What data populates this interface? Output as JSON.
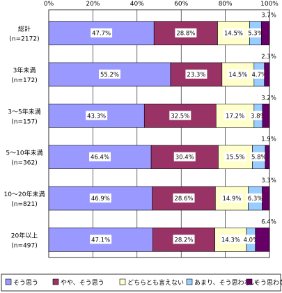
{
  "chart_data": {
    "type": "bar",
    "orientation": "horizontal",
    "stacked": true,
    "xlim": [
      0,
      100
    ],
    "x_ticks": [
      "0%",
      "20%",
      "40%",
      "60%",
      "80%",
      "100%"
    ],
    "grid": true,
    "legend_position": "bottom",
    "categories": [
      {
        "label": "総計",
        "n": "(n=2172)"
      },
      {
        "label": "3年未満",
        "n": "(n=172)"
      },
      {
        "label": "3～5年未満",
        "n": "(n=157)"
      },
      {
        "label": "5～10年未満",
        "n": "(n=362)"
      },
      {
        "label": "10～20年未満",
        "n": "(n=821)"
      },
      {
        "label": "20年以上",
        "n": "(n=497)"
      }
    ],
    "series": [
      {
        "name": "そう思う",
        "color": "#9999ff",
        "values": [
          47.7,
          55.2,
          43.3,
          46.4,
          46.9,
          47.1
        ],
        "labels": [
          "47.7%",
          "55.2%",
          "43.3%",
          "46.4%",
          "46.9%",
          "47.1%"
        ]
      },
      {
        "name": "やや、そう思う",
        "color": "#993366",
        "values": [
          28.8,
          23.3,
          32.5,
          30.4,
          28.6,
          28.2
        ],
        "labels": [
          "28.8%",
          "23.3%",
          "32.5%",
          "30.4%",
          "28.6%",
          "28.2%"
        ]
      },
      {
        "name": "どちらとも言えない",
        "color": "#ffffcc",
        "values": [
          14.5,
          14.5,
          17.2,
          15.5,
          14.9,
          14.3
        ],
        "labels": [
          "14.5%",
          "14.5%",
          "17.2%",
          "15.5%",
          "14.9%",
          "14.3%"
        ]
      },
      {
        "name": "あまり、そう思わない",
        "color": "#99ccff",
        "values": [
          5.3,
          4.7,
          3.8,
          5.8,
          6.3,
          4.0
        ],
        "labels": [
          "5.3%",
          "4.7%",
          "3.8%",
          "5.8%",
          "6.3%",
          "4.0%"
        ]
      },
      {
        "name": "そう思わない",
        "color": "#660066",
        "values": [
          3.7,
          2.3,
          3.2,
          1.9,
          3.3,
          6.4
        ],
        "labels": [
          "3.7%",
          "2.3%",
          "3.2%",
          "1.9%",
          "3.3%",
          "6.4%"
        ]
      }
    ]
  }
}
